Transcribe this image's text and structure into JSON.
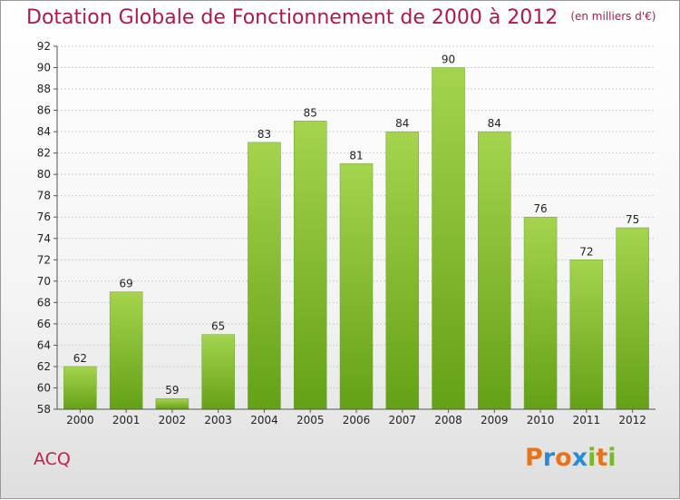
{
  "title": "Dotation Globale de Fonctionnement de 2000 à 2012",
  "unit": "(en milliers d'€)",
  "place": "ACQ",
  "logo": {
    "text": "Proxiti",
    "letters": [
      "P",
      "r",
      "o",
      "x",
      "i",
      "t",
      "i"
    ],
    "colors": [
      "#e8731c",
      "#2a8bd4",
      "#e8731c",
      "#2a8bd4",
      "#79b829",
      "#e8731c",
      "#79b829"
    ]
  },
  "colors": {
    "bar_top": "#a5d44e",
    "bar_bottom": "#64a116",
    "title": "#b0174f"
  },
  "chart_data": {
    "type": "bar",
    "title": "Dotation Globale de Fonctionnement de 2000 à 2012",
    "subtitle": "(en milliers d'€)",
    "categories": [
      "2000",
      "2001",
      "2002",
      "2003",
      "2004",
      "2005",
      "2006",
      "2007",
      "2008",
      "2009",
      "2010",
      "2011",
      "2012"
    ],
    "values": [
      62,
      69,
      59,
      65,
      83,
      85,
      81,
      84,
      90,
      84,
      76,
      72,
      75
    ],
    "ylim": [
      58,
      92
    ],
    "yticks": [
      58,
      60,
      62,
      64,
      66,
      68,
      70,
      72,
      74,
      76,
      78,
      80,
      82,
      84,
      86,
      88,
      90,
      92
    ],
    "grid": true,
    "legend": "none"
  }
}
